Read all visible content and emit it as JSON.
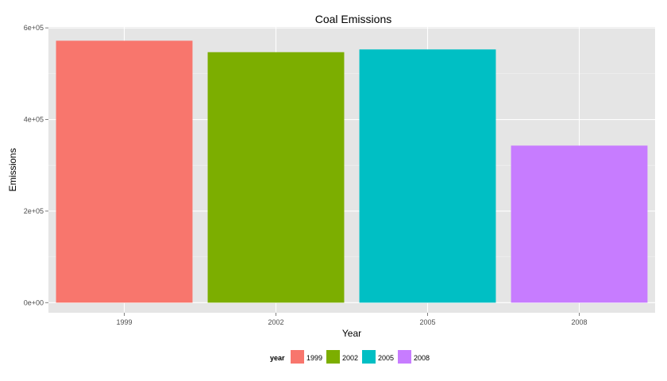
{
  "chart_data": {
    "type": "bar",
    "title": "Coal Emissions",
    "xlabel": "Year",
    "ylabel": "Emissions",
    "categories": [
      "1999",
      "2002",
      "2005",
      "2008"
    ],
    "values": [
      572000,
      547000,
      553000,
      343000
    ],
    "colors": [
      "#F8766D",
      "#7CAE00",
      "#00BFC4",
      "#C77CFF"
    ],
    "ylim": [
      -22000,
      602000
    ],
    "y_ticks": [
      0,
      200000,
      400000,
      600000
    ],
    "y_tick_labels": [
      "0e+00",
      "2e+05",
      "4e+05",
      "6e+05"
    ],
    "grid": true,
    "panel_background": "#E5E5E5",
    "legend": {
      "title": "year",
      "position": "bottom",
      "entries": [
        "1999",
        "2002",
        "2005",
        "2008"
      ]
    }
  }
}
